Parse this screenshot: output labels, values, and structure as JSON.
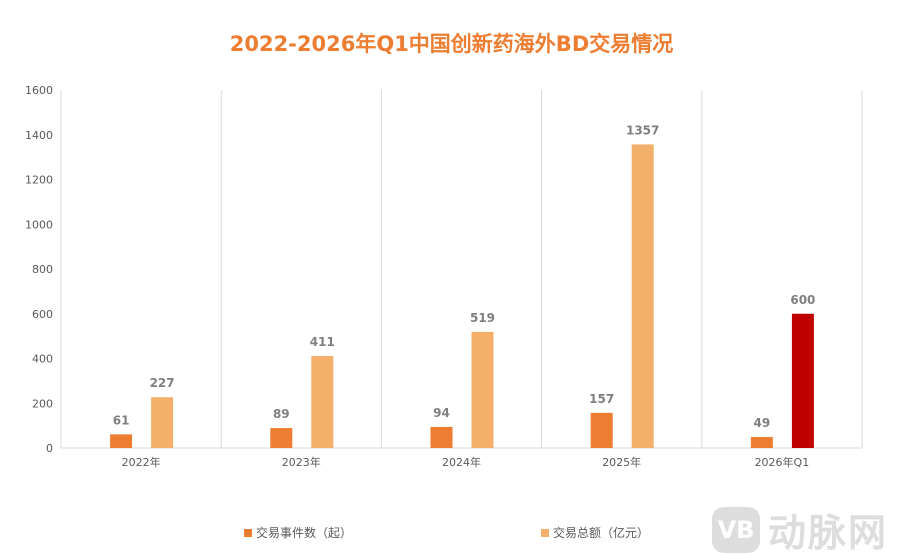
{
  "chart_data": {
    "type": "bar",
    "title": "2022-2026年Q1中国创新药海外BD交易情况",
    "categories": [
      "2022年",
      "2023年",
      "2024年",
      "2025年",
      "2026年Q1"
    ],
    "series": [
      {
        "name": "交易事件数（起）",
        "values": [
          61,
          89,
          94,
          157,
          49
        ],
        "color": "#ED7D31"
      },
      {
        "name": "交易总额（亿元）",
        "values": [
          227,
          411,
          519,
          1357,
          600
        ],
        "color": "#F4B06B",
        "highlight": {
          "index": 4,
          "color": "#C00000"
        }
      }
    ],
    "ylim": [
      0,
      1600
    ],
    "yticks": [
      0,
      200,
      400,
      600,
      800,
      1000,
      1200,
      1400,
      1600
    ],
    "grid": "vertical category separators",
    "legend": "bottom"
  },
  "watermark": {
    "logo": "VB",
    "text": "动脉网"
  }
}
